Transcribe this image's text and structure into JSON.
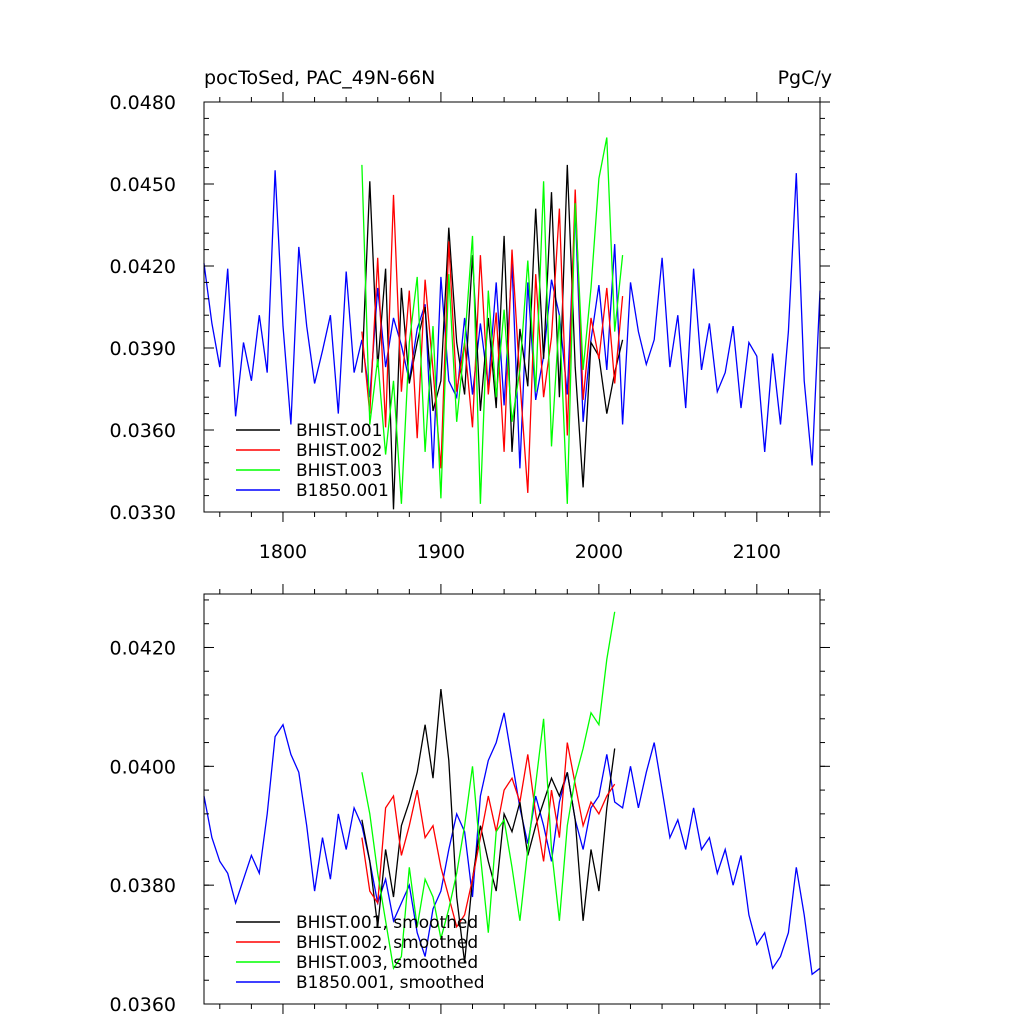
{
  "chart_data": [
    {
      "type": "line",
      "title": "pocToSed, PAC_49N-66N",
      "units": "PgC/y",
      "xlim": [
        1750,
        2140
      ],
      "ylim": [
        0.033,
        0.048
      ],
      "xticks": [
        {
          "value": 1800,
          "label": "1800"
        },
        {
          "value": 1900,
          "label": "1900"
        },
        {
          "value": 2000,
          "label": "2000"
        },
        {
          "value": 2100,
          "label": "2100"
        }
      ],
      "yticks": [
        {
          "value": 0.048,
          "label": "0.0480"
        },
        {
          "value": 0.045,
          "label": "0.0450"
        },
        {
          "value": 0.042,
          "label": "0.0420"
        },
        {
          "value": 0.039,
          "label": "0.0390"
        },
        {
          "value": 0.036,
          "label": "0.0360"
        },
        {
          "value": 0.033,
          "label": "0.0330"
        }
      ],
      "legend_position": "bottom-left",
      "series": [
        {
          "name": "B1850.001",
          "color": "#0000ff",
          "x": [
            1750,
            1755,
            1760,
            1765,
            1770,
            1775,
            1780,
            1785,
            1790,
            1795,
            1800,
            1805,
            1810,
            1815,
            1820,
            1825,
            1830,
            1835,
            1840,
            1845,
            1850,
            1855,
            1860,
            1865,
            1870,
            1875,
            1880,
            1885,
            1890,
            1895,
            1900,
            1905,
            1910,
            1915,
            1920,
            1925,
            1930,
            1935,
            1940,
            1945,
            1950,
            1955,
            1960,
            1965,
            1970,
            1975,
            1980,
            1985,
            1990,
            1995,
            2000,
            2005,
            2010,
            2015,
            2020,
            2025,
            2030,
            2035,
            2040,
            2045,
            2050,
            2055,
            2060,
            2065,
            2070,
            2075,
            2080,
            2085,
            2090,
            2095,
            2100,
            2105,
            2110,
            2115,
            2120,
            2125,
            2130,
            2135,
            2140
          ],
          "values": [
            0.0421,
            0.0399,
            0.0383,
            0.0419,
            0.0365,
            0.0392,
            0.0378,
            0.0402,
            0.0381,
            0.0455,
            0.0398,
            0.0362,
            0.0427,
            0.0398,
            0.0377,
            0.0389,
            0.0402,
            0.0366,
            0.0418,
            0.0381,
            0.0393,
            0.0372,
            0.0412,
            0.0383,
            0.0401,
            0.0391,
            0.0378,
            0.0397,
            0.0406,
            0.0346,
            0.0416,
            0.0378,
            0.0372,
            0.0401,
            0.0373,
            0.0399,
            0.0376,
            0.0414,
            0.0369,
            0.0421,
            0.0346,
            0.0414,
            0.0371,
            0.0387,
            0.0415,
            0.0402,
            0.0373,
            0.0441,
            0.0363,
            0.0393,
            0.0413,
            0.0382,
            0.0428,
            0.0362,
            0.0414,
            0.0396,
            0.0384,
            0.0393,
            0.0423,
            0.0383,
            0.0402,
            0.0368,
            0.0419,
            0.0382,
            0.0399,
            0.0374,
            0.0381,
            0.0398,
            0.0368,
            0.0392,
            0.0387,
            0.0352,
            0.0388,
            0.0362,
            0.0396,
            0.0454,
            0.0378,
            0.0347,
            0.0411
          ]
        },
        {
          "name": "BHIST.001",
          "color": "#000000",
          "x": [
            1850,
            1855,
            1860,
            1865,
            1870,
            1875,
            1880,
            1885,
            1890,
            1895,
            1900,
            1905,
            1910,
            1915,
            1920,
            1925,
            1930,
            1935,
            1940,
            1945,
            1950,
            1955,
            1960,
            1965,
            1970,
            1975,
            1980,
            1985,
            1990,
            1995,
            2000,
            2005,
            2010,
            2015
          ],
          "values": [
            0.0381,
            0.0451,
            0.0383,
            0.0419,
            0.0331,
            0.0412,
            0.0377,
            0.0392,
            0.0405,
            0.0367,
            0.0378,
            0.0434,
            0.0392,
            0.0373,
            0.0424,
            0.0367,
            0.0401,
            0.0368,
            0.0431,
            0.0352,
            0.0397,
            0.0376,
            0.0441,
            0.0386,
            0.0447,
            0.0372,
            0.0457,
            0.0383,
            0.0339,
            0.0392,
            0.0387,
            0.0366,
            0.0381,
            0.0393
          ]
        },
        {
          "name": "BHIST.002",
          "color": "#ff0000",
          "x": [
            1850,
            1855,
            1860,
            1865,
            1870,
            1875,
            1880,
            1885,
            1890,
            1895,
            1900,
            1905,
            1910,
            1915,
            1920,
            1925,
            1930,
            1935,
            1940,
            1945,
            1950,
            1955,
            1960,
            1965,
            1970,
            1975,
            1980,
            1985,
            1990,
            1995,
            2000,
            2005,
            2010,
            2015
          ],
          "values": [
            0.0396,
            0.0366,
            0.0423,
            0.0361,
            0.0446,
            0.0374,
            0.0411,
            0.0357,
            0.0415,
            0.0382,
            0.0346,
            0.0429,
            0.0374,
            0.0392,
            0.0361,
            0.0424,
            0.0373,
            0.0403,
            0.0352,
            0.0426,
            0.0378,
            0.0337,
            0.0417,
            0.0372,
            0.0394,
            0.0441,
            0.0358,
            0.0448,
            0.0371,
            0.0401,
            0.0386,
            0.0412,
            0.0377,
            0.0409
          ]
        },
        {
          "name": "BHIST.003",
          "color": "#00ff00",
          "x": [
            1850,
            1855,
            1860,
            1865,
            1870,
            1875,
            1880,
            1885,
            1890,
            1895,
            1900,
            1905,
            1910,
            1915,
            1920,
            1925,
            1930,
            1935,
            1940,
            1945,
            1950,
            1955,
            1960,
            1965,
            1970,
            1975,
            1980,
            1985,
            1990,
            1995,
            2000,
            2005,
            2010,
            2015
          ],
          "values": [
            0.0457,
            0.0362,
            0.0386,
            0.0351,
            0.0378,
            0.0333,
            0.0392,
            0.0416,
            0.0352,
            0.0398,
            0.0335,
            0.0417,
            0.0363,
            0.0392,
            0.0431,
            0.0333,
            0.0411,
            0.0372,
            0.0404,
            0.0363,
            0.0382,
            0.0422,
            0.0374,
            0.0451,
            0.0354,
            0.0402,
            0.0333,
            0.0443,
            0.0382,
            0.0412,
            0.0452,
            0.0467,
            0.0396,
            0.0424
          ]
        }
      ]
    },
    {
      "type": "line",
      "xlim": [
        1750,
        2140
      ],
      "ylim": [
        0.036,
        0.0429
      ],
      "xticks": [
        {
          "value": 1800,
          "label": ""
        },
        {
          "value": 1900,
          "label": ""
        },
        {
          "value": 2000,
          "label": ""
        },
        {
          "value": 2100,
          "label": ""
        }
      ],
      "yticks": [
        {
          "value": 0.042,
          "label": "0.0420"
        },
        {
          "value": 0.04,
          "label": "0.0400"
        },
        {
          "value": 0.038,
          "label": "0.0380"
        },
        {
          "value": 0.036,
          "label": "0.0360"
        }
      ],
      "legend_position": "bottom-left",
      "series": [
        {
          "name": "B1850.001, smoothed",
          "color": "#0000ff",
          "x": [
            1750,
            1755,
            1760,
            1765,
            1770,
            1775,
            1780,
            1785,
            1790,
            1795,
            1800,
            1805,
            1810,
            1815,
            1820,
            1825,
            1830,
            1835,
            1840,
            1845,
            1850,
            1855,
            1860,
            1865,
            1870,
            1875,
            1880,
            1885,
            1890,
            1895,
            1900,
            1905,
            1910,
            1915,
            1920,
            1925,
            1930,
            1935,
            1940,
            1945,
            1950,
            1955,
            1960,
            1965,
            1970,
            1975,
            1980,
            1985,
            1990,
            1995,
            2000,
            2005,
            2010,
            2015,
            2020,
            2025,
            2030,
            2035,
            2040,
            2045,
            2050,
            2055,
            2060,
            2065,
            2070,
            2075,
            2080,
            2085,
            2090,
            2095,
            2100,
            2105,
            2110,
            2115,
            2120,
            2125,
            2130,
            2135,
            2140
          ],
          "values": [
            0.0395,
            0.0388,
            0.0384,
            0.0382,
            0.0377,
            0.0381,
            0.0385,
            0.0382,
            0.0392,
            0.0405,
            0.0407,
            0.0402,
            0.0399,
            0.039,
            0.0379,
            0.0388,
            0.0381,
            0.0392,
            0.0386,
            0.0393,
            0.039,
            0.0384,
            0.0377,
            0.0381,
            0.0374,
            0.0377,
            0.038,
            0.0372,
            0.0368,
            0.0376,
            0.0379,
            0.0386,
            0.0392,
            0.0389,
            0.0378,
            0.0395,
            0.0401,
            0.0404,
            0.0409,
            0.0401,
            0.0393,
            0.0387,
            0.0395,
            0.039,
            0.0384,
            0.0394,
            0.0399,
            0.0391,
            0.0386,
            0.0393,
            0.0395,
            0.0402,
            0.0394,
            0.0393,
            0.04,
            0.0393,
            0.0399,
            0.0404,
            0.0396,
            0.0388,
            0.0391,
            0.0386,
            0.0393,
            0.0386,
            0.0388,
            0.0382,
            0.0386,
            0.038,
            0.0385,
            0.0375,
            0.037,
            0.0372,
            0.0366,
            0.0368,
            0.0372,
            0.0383,
            0.0375,
            0.0365,
            0.0366
          ]
        },
        {
          "name": "BHIST.001, smoothed",
          "color": "#000000",
          "x": [
            1850,
            1855,
            1860,
            1865,
            1870,
            1875,
            1880,
            1885,
            1890,
            1895,
            1900,
            1905,
            1910,
            1915,
            1920,
            1925,
            1930,
            1935,
            1940,
            1945,
            1950,
            1955,
            1960,
            1965,
            1970,
            1975,
            1980,
            1985,
            1990,
            1995,
            2000,
            2005,
            2010
          ],
          "values": [
            0.0391,
            0.0384,
            0.0373,
            0.0386,
            0.0378,
            0.039,
            0.0394,
            0.0399,
            0.0407,
            0.0398,
            0.0413,
            0.0401,
            0.0378,
            0.0367,
            0.0381,
            0.039,
            0.0384,
            0.0379,
            0.0392,
            0.0389,
            0.0394,
            0.0385,
            0.039,
            0.0394,
            0.0398,
            0.0395,
            0.0399,
            0.0391,
            0.0374,
            0.0386,
            0.0379,
            0.0393,
            0.0403
          ]
        },
        {
          "name": "BHIST.002, smoothed",
          "color": "#ff0000",
          "x": [
            1850,
            1855,
            1860,
            1865,
            1870,
            1875,
            1880,
            1885,
            1890,
            1895,
            1900,
            1905,
            1910,
            1915,
            1920,
            1925,
            1930,
            1935,
            1940,
            1945,
            1950,
            1955,
            1960,
            1965,
            1970,
            1975,
            1980,
            1985,
            1990,
            1995,
            2000,
            2005,
            2010
          ],
          "values": [
            0.0388,
            0.0379,
            0.0377,
            0.0393,
            0.0395,
            0.0385,
            0.039,
            0.0396,
            0.0388,
            0.039,
            0.0383,
            0.0378,
            0.0373,
            0.0375,
            0.0381,
            0.0388,
            0.0395,
            0.0389,
            0.0396,
            0.0398,
            0.0394,
            0.0402,
            0.0392,
            0.0384,
            0.0396,
            0.0388,
            0.0404,
            0.0397,
            0.039,
            0.0394,
            0.0392,
            0.0395,
            0.0397
          ]
        },
        {
          "name": "BHIST.003, smoothed",
          "color": "#00ff00",
          "x": [
            1850,
            1855,
            1860,
            1865,
            1870,
            1875,
            1880,
            1885,
            1890,
            1895,
            1900,
            1905,
            1910,
            1915,
            1920,
            1925,
            1930,
            1935,
            1940,
            1945,
            1950,
            1955,
            1960,
            1965,
            1970,
            1975,
            1980,
            1985,
            1990,
            1995,
            2000,
            2005,
            2010
          ],
          "values": [
            0.0399,
            0.0392,
            0.0382,
            0.0374,
            0.0366,
            0.0368,
            0.0383,
            0.0373,
            0.0381,
            0.0378,
            0.0371,
            0.0376,
            0.0382,
            0.039,
            0.04,
            0.0385,
            0.0372,
            0.0389,
            0.0391,
            0.0383,
            0.0374,
            0.0386,
            0.0397,
            0.0408,
            0.0386,
            0.0374,
            0.039,
            0.0398,
            0.0403,
            0.0409,
            0.0407,
            0.0418,
            0.0426
          ]
        }
      ]
    }
  ],
  "legends": [
    [
      "BHIST.001",
      "BHIST.002",
      "BHIST.003",
      "B1850.001"
    ],
    [
      "BHIST.001, smoothed",
      "BHIST.002, smoothed",
      "BHIST.003, smoothed",
      "B1850.001, smoothed"
    ]
  ],
  "legend_colors": [
    "#000000",
    "#ff0000",
    "#00ff00",
    "#0000ff"
  ]
}
